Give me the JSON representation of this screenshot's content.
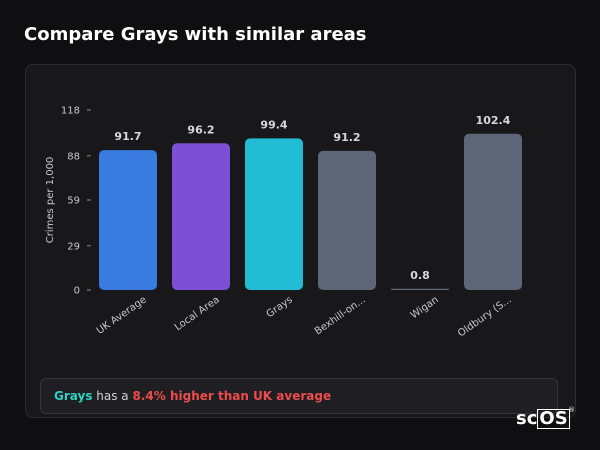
{
  "page": {
    "title": "Compare Grays with similar areas"
  },
  "chart_data": {
    "type": "bar",
    "title": "",
    "xlabel": "",
    "ylabel": "Crimes per 1,000",
    "ylim": [
      0,
      118
    ],
    "yticks": [
      0,
      29,
      59,
      88,
      118
    ],
    "grid": false,
    "categories": [
      "UK Average",
      "Local Area",
      "Grays",
      "Bexhill-on...",
      "Wigan",
      "Oldbury (S..."
    ],
    "values": [
      91.7,
      96.2,
      99.4,
      91.2,
      0.8,
      102.4
    ],
    "value_labels": [
      "91.7",
      "96.2",
      "99.4",
      "91.2",
      "0.8",
      "102.4"
    ],
    "colors": [
      "#3a7be0",
      "#7b4fd6",
      "#22bcd4",
      "#5c6677",
      "#5c6677",
      "#5c6677"
    ]
  },
  "note": {
    "area": "Grays",
    "middle": " has a ",
    "highlight": "8.4% higher than UK average"
  },
  "logo": {
    "prefix": "sc",
    "boxed": "OS",
    "reg": "®"
  }
}
